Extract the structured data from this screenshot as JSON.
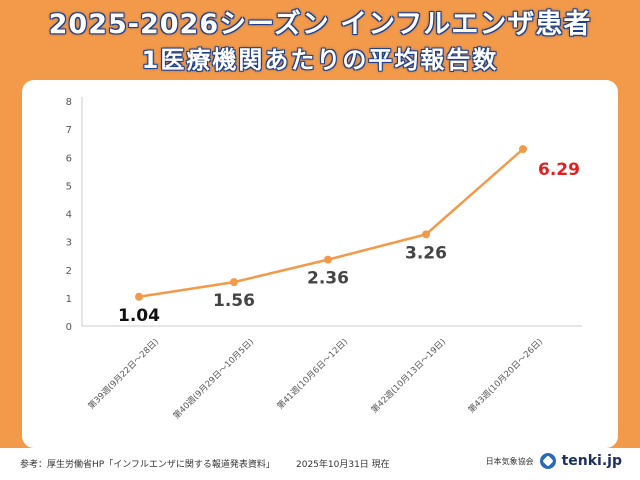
{
  "header": {
    "title_line1": "2025-2026シーズン インフルエンザ患者",
    "title_line2": "1医療機関あたりの平均報告数"
  },
  "footer": {
    "source": "参考：厚生労働省HP「インフルエンザに関する報道発表資料」",
    "date": "2025年10月31日 現在",
    "org": "日本気象協会",
    "brand": "tenki.jp"
  },
  "colors": {
    "background": "#f29a4a",
    "line": "#f29a4a",
    "highlight_label": "#e02020",
    "title_outline": "#1d3f8a"
  },
  "chart_data": {
    "type": "line",
    "title": "",
    "xlabel": "",
    "ylabel": "",
    "ylim": [
      0,
      8
    ],
    "yticks": [
      0,
      1,
      2,
      3,
      4,
      5,
      6,
      7,
      8
    ],
    "grid": false,
    "categories": [
      "第39週(9月22日～28日)",
      "第40週(9月29日～10月5日)",
      "第41週(10月6日～12日)",
      "第42週(10月13日～19日)",
      "第43週(10月20日～26日)"
    ],
    "values": [
      1.04,
      1.56,
      2.36,
      3.26,
      6.29
    ],
    "data_labels": [
      "1.04",
      "1.56",
      "2.36",
      "3.26",
      "6.29"
    ]
  }
}
